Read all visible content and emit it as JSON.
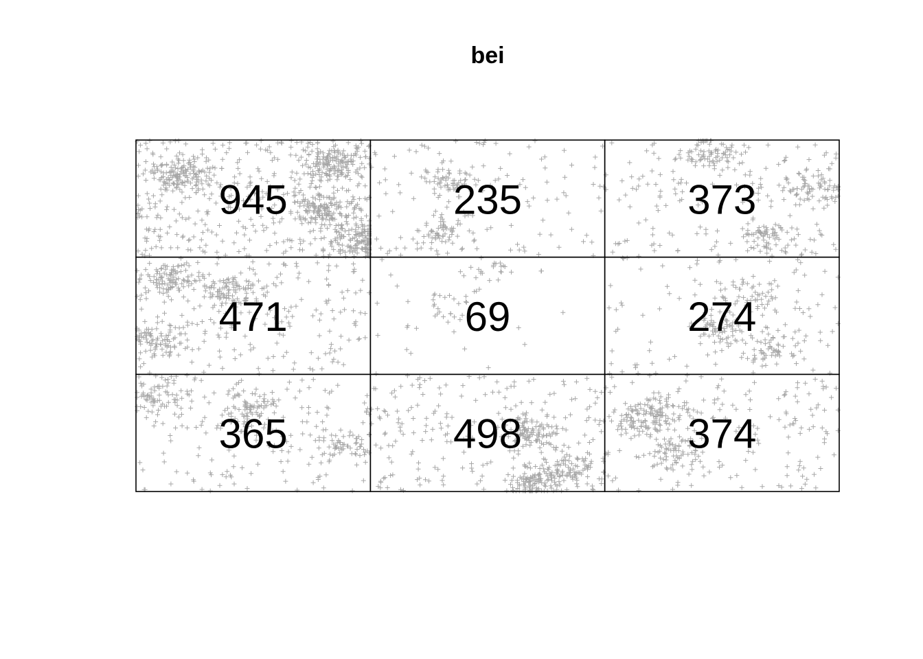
{
  "chart_data": {
    "type": "heatmap",
    "title": "bei",
    "grid": {
      "rows": 3,
      "cols": 3
    },
    "counts": [
      [
        945,
        235,
        373
      ],
      [
        471,
        69,
        274
      ],
      [
        365,
        498,
        374
      ]
    ],
    "point_marker": "plus",
    "point_color": "#000000"
  }
}
